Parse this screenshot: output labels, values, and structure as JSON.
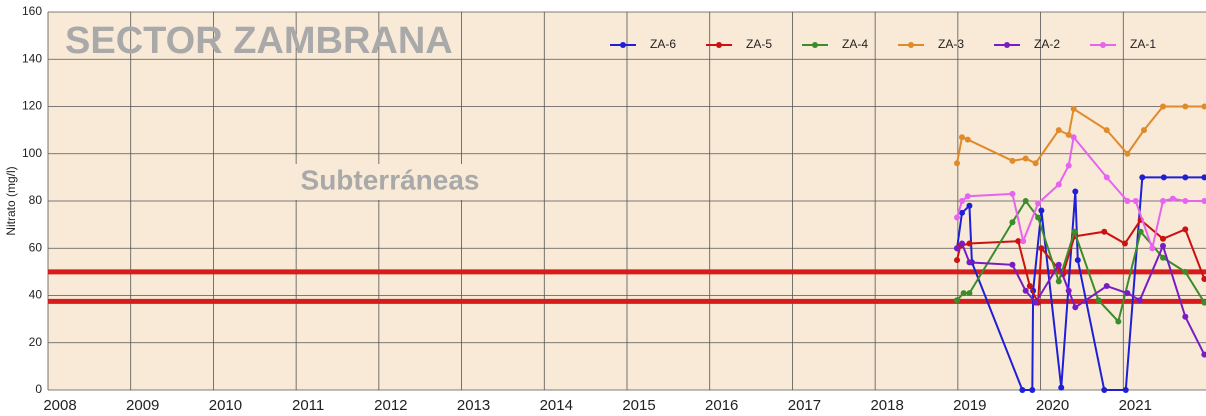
{
  "chart_data": {
    "type": "line",
    "title": "SECTOR ZAMBRANA",
    "subtitle": "Subterráneas",
    "y_label": "Nitrato (mg/l)",
    "xlim": [
      2008,
      2022
    ],
    "xticks": [
      2008,
      2009,
      2010,
      2011,
      2012,
      2013,
      2014,
      2015,
      2016,
      2017,
      2018,
      2019,
      2020,
      2021
    ],
    "ylim": [
      0,
      160
    ],
    "yticks": [
      0,
      20,
      40,
      60,
      80,
      100,
      120,
      140,
      160
    ],
    "grid": true,
    "legend": "top",
    "reference_lines": [
      50,
      37.5
    ],
    "reference_color": "#d81c1c",
    "series": [
      {
        "name": "ZA-6",
        "color": "#1f1fd6",
        "x": [
          2018.99,
          2019.05,
          2019.14,
          2019.17,
          2019.78,
          2019.9,
          2019.91,
          2020.01,
          2020.25,
          2020.42,
          2020.45,
          2020.77,
          2021.03,
          2021.23,
          2021.49,
          2021.75,
          2021.98
        ],
        "values": [
          60,
          75,
          78,
          54,
          0,
          0,
          42,
          76,
          1,
          84,
          55,
          0,
          0,
          90,
          90,
          90,
          90
        ]
      },
      {
        "name": "ZA-5",
        "color": "#cc1111",
        "x": [
          2018.99,
          2019.03,
          2019.14,
          2019.73,
          2019.87,
          2019.97,
          2020.01,
          2020.27,
          2020.41,
          2020.77,
          2021.02,
          2021.21,
          2021.48,
          2021.75,
          2021.98
        ],
        "values": [
          55,
          61,
          62,
          63,
          44,
          37,
          60,
          49,
          65,
          67,
          62,
          72,
          64,
          68,
          47
        ]
      },
      {
        "name": "ZA-4",
        "color": "#3d8c2a",
        "x": [
          2018.99,
          2019.07,
          2019.14,
          2019.66,
          2019.82,
          2019.97,
          2020.22,
          2020.41,
          2020.7,
          2020.94,
          2021.21,
          2021.48,
          2021.75,
          2021.98
        ],
        "values": [
          38,
          41,
          41,
          71,
          80,
          73,
          46,
          67,
          38,
          29,
          67,
          56,
          50,
          37
        ]
      },
      {
        "name": "ZA-3",
        "color": "#e08a2c",
        "x": [
          2018.99,
          2019.05,
          2019.12,
          2019.66,
          2019.82,
          2019.94,
          2020.22,
          2020.34,
          2020.4,
          2020.8,
          2021.05,
          2021.25,
          2021.48,
          2021.75,
          2021.98
        ],
        "values": [
          96,
          107,
          106,
          97,
          98,
          96,
          110,
          108,
          119,
          110,
          100,
          110,
          120,
          120,
          120
        ]
      },
      {
        "name": "ZA-2",
        "color": "#7a1cc4",
        "x": [
          2018.99,
          2019.05,
          2019.14,
          2019.66,
          2019.82,
          2019.94,
          2020.22,
          2020.34,
          2020.42,
          2020.8,
          2021.05,
          2021.2,
          2021.48,
          2021.75,
          2021.98
        ],
        "values": [
          60,
          62,
          54,
          53,
          42,
          37,
          53,
          42,
          35,
          44,
          41,
          38,
          61,
          31,
          15
        ]
      },
      {
        "name": "ZA-1",
        "color": "#e664f0",
        "x": [
          2018.99,
          2019.05,
          2019.12,
          2019.66,
          2019.79,
          2019.97,
          2020.22,
          2020.34,
          2020.4,
          2020.8,
          2021.05,
          2021.15,
          2021.35,
          2021.48,
          2021.6,
          2021.75,
          2021.98
        ],
        "values": [
          73,
          80,
          82,
          83,
          63,
          79,
          87,
          95,
          107,
          90,
          80,
          80,
          60,
          80,
          81,
          80,
          80
        ]
      }
    ]
  }
}
